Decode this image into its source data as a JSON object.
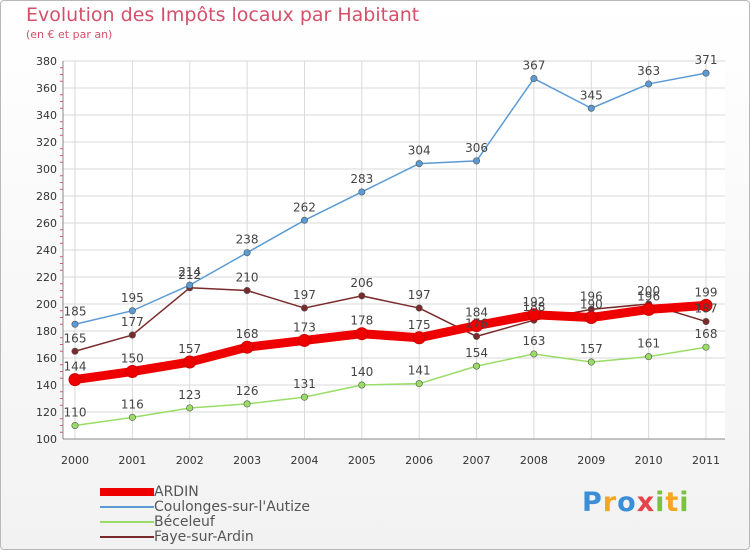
{
  "chart_data": {
    "type": "line",
    "title": "Evolution des Impôts locaux par Habitant",
    "subtitle": "(en € et par an)",
    "xlabel": "",
    "ylabel": "",
    "x": [
      "2000",
      "2001",
      "2002",
      "2003",
      "2004",
      "2005",
      "2006",
      "2007",
      "2008",
      "2009",
      "2010",
      "2011"
    ],
    "ylim": [
      100,
      380
    ],
    "yticks": [
      "100",
      "120",
      "140",
      "160",
      "180",
      "200",
      "220",
      "240",
      "260",
      "280",
      "300",
      "320",
      "340",
      "360",
      "380"
    ],
    "grid": true,
    "legend_position": "bottom-left",
    "series": [
      {
        "name": "ARDIN",
        "color": "#ee0000",
        "values": [
          144,
          150,
          157,
          168,
          173,
          178,
          175,
          184,
          192,
          190,
          196,
          199
        ]
      },
      {
        "name": "Coulonges-sur-l'Autize",
        "color": "#5b9bd5",
        "values": [
          185,
          195,
          214,
          238,
          262,
          283,
          304,
          306,
          367,
          345,
          363,
          371
        ]
      },
      {
        "name": "Béceleuf",
        "color": "#99dd66",
        "values": [
          110,
          116,
          123,
          126,
          131,
          140,
          141,
          154,
          163,
          157,
          161,
          168
        ]
      },
      {
        "name": "Faye-sur-Ardin",
        "color": "#7a2a2a",
        "values": [
          165,
          177,
          212,
          210,
          197,
          206,
          197,
          176,
          188,
          196,
          200,
          187
        ]
      }
    ]
  },
  "logo": {
    "letters": [
      "P",
      "r",
      "o",
      "x",
      "i",
      "t",
      "i"
    ]
  }
}
